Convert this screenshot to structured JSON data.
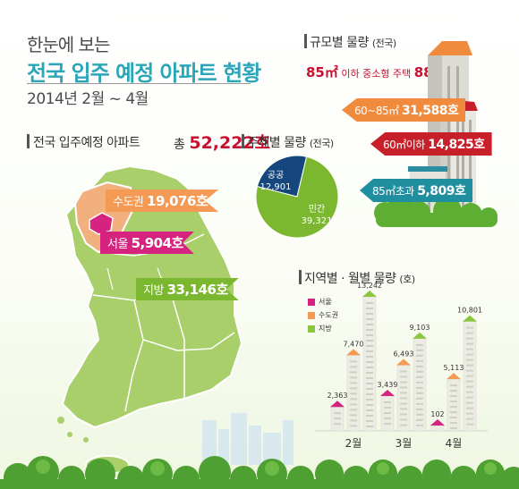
{
  "title": {
    "line1": "한눈에 보는",
    "line2": "전국 입주 예정 아파트 현황",
    "period": "2014년  2월 ~ 4월"
  },
  "national": {
    "heading": "전국 입주예정 아파트",
    "total_prefix": "총",
    "total_value": "52,222호",
    "metro_label": "수도권",
    "metro_value": "19,076호",
    "seoul_label": "서울",
    "seoul_value": "5,904호",
    "local_label": "지방",
    "local_value": "33,146호"
  },
  "by_size": {
    "heading": "규모별 물량",
    "heading_sub": "(전국)",
    "highlight_value": "85㎡",
    "highlight_text": "이하 중소형 주택",
    "highlight_pct": "88.8%",
    "items": [
      {
        "label": "60~85㎡",
        "value": "31,588호"
      },
      {
        "label": "60㎡이하",
        "value": "14,825호"
      },
      {
        "label": "85㎡초과",
        "value": "5,809호"
      }
    ]
  },
  "by_entity": {
    "heading": "주체별 물량",
    "heading_sub": "(전국)",
    "public_label": "공공",
    "public_value": "12,901",
    "private_label": "민간",
    "private_value": "39,321"
  },
  "colors": {
    "seoul": "#d6237f",
    "metro": "#f59a55",
    "local": "#8cc63f",
    "title_blue": "#2aa6b8",
    "accent_red": "#c8102e",
    "teal": "#1f8fa0",
    "navy": "#16477c",
    "green": "#7cb82f"
  },
  "regional": {
    "heading": "지역별 · 월별 물량",
    "heading_sub": "(호)",
    "legend": [
      "서울",
      "수도권",
      "지방"
    ]
  },
  "chart_data": [
    {
      "type": "pie",
      "title": "주체별 물량 (전국)",
      "categories": [
        "공공",
        "민간"
      ],
      "values": [
        12901,
        39321
      ]
    },
    {
      "type": "bar",
      "title": "지역별 · 월별 물량 (호)",
      "categories": [
        "2월",
        "3월",
        "4월"
      ],
      "series": [
        {
          "name": "서울",
          "values": [
            2363,
            3439,
            102
          ]
        },
        {
          "name": "수도권",
          "values": [
            7470,
            6493,
            5113
          ]
        },
        {
          "name": "지방",
          "values": [
            13242,
            9103,
            10801
          ]
        }
      ],
      "ylim": [
        0,
        13242
      ]
    }
  ]
}
